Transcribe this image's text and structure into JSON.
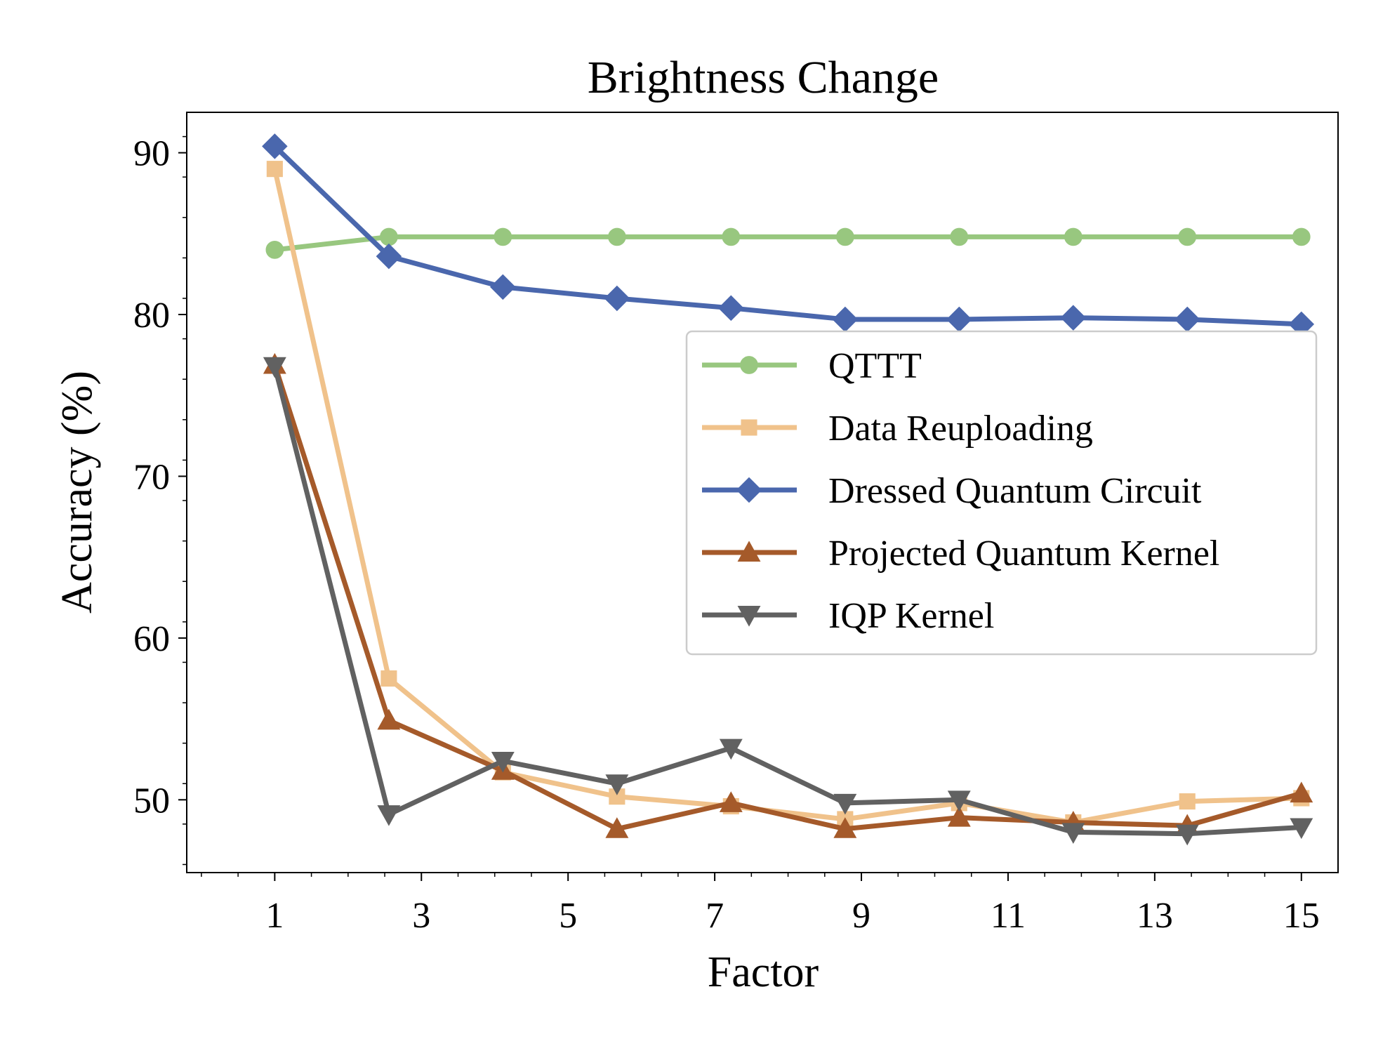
{
  "chart_data": {
    "type": "line",
    "title": "Brightness Change",
    "xlabel": "Factor",
    "ylabel": "Accuracy (%)",
    "xlim": [
      -0.2,
      15.5
    ],
    "ylim": [
      45.5,
      92.5
    ],
    "xticks": [
      1,
      3,
      5,
      7,
      9,
      11,
      13,
      15
    ],
    "yticks": [
      50,
      60,
      70,
      80,
      90
    ],
    "x": [
      1,
      2.556,
      4.111,
      5.667,
      7.222,
      8.778,
      10.333,
      11.889,
      13.444,
      15
    ],
    "grid": false,
    "legend_position": "center-right",
    "series": [
      {
        "name": "QTTT",
        "color": "#98c77f",
        "marker": "circle",
        "values": [
          84.0,
          84.8,
          84.8,
          84.8,
          84.8,
          84.8,
          84.8,
          84.8,
          84.8,
          84.8
        ]
      },
      {
        "name": "Data Reuploading",
        "color": "#f0c28b",
        "marker": "square",
        "values": [
          89.0,
          57.5,
          51.7,
          50.2,
          49.6,
          48.8,
          49.8,
          48.6,
          49.9,
          50.1
        ]
      },
      {
        "name": "Dressed Quantum Circuit",
        "color": "#4a67ad",
        "marker": "diamond",
        "values": [
          90.4,
          83.6,
          81.7,
          81.0,
          80.4,
          79.7,
          79.7,
          79.8,
          79.7,
          79.4
        ]
      },
      {
        "name": "Projected Quantum Kernel",
        "color": "#a55a2a",
        "marker": "triangle-up",
        "values": [
          76.9,
          54.9,
          51.8,
          48.2,
          49.8,
          48.2,
          48.9,
          48.6,
          48.4,
          50.4
        ]
      },
      {
        "name": "IQP Kernel",
        "color": "#616161",
        "marker": "triangle-down",
        "values": [
          76.8,
          49.1,
          52.4,
          51.0,
          53.2,
          49.8,
          50.0,
          48.0,
          47.9,
          48.3
        ]
      }
    ]
  }
}
